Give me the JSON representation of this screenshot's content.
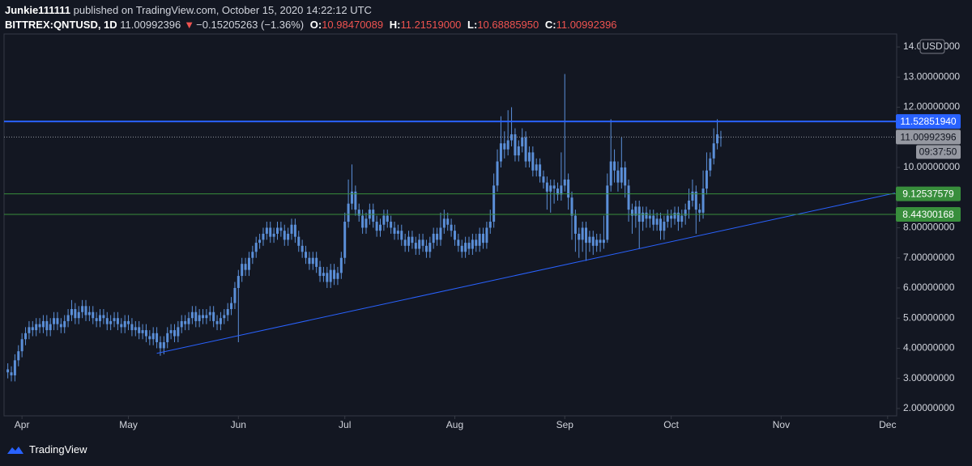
{
  "chart_data": {
    "type": "candlestick",
    "author": "Junkie111111",
    "published": "published on TradingView.com, October 15, 2020 14:22:12 UTC",
    "symbol": "BITTREX:QNTUSD, 1D",
    "last": "11.00992396",
    "change_arrow": "▼",
    "change": "−0.15205263 (−1.36%)",
    "ohlc_labels": [
      "O:",
      "H:",
      "L:",
      "C:"
    ],
    "ohlc_values": [
      "10.98470089",
      "11.21519000",
      "10.68885950",
      "11.00992396"
    ],
    "currency": "USD",
    "brand": "TradingView",
    "color": "#5b8fd8",
    "xlim": [
      85.8,
      338.1
    ],
    "ylim": [
      1.81,
      14.35
    ],
    "xticks": [
      {
        "value": 92,
        "label": "Apr"
      },
      {
        "value": 122,
        "label": "May"
      },
      {
        "value": 153,
        "label": "Jun"
      },
      {
        "value": 183,
        "label": "Jul"
      },
      {
        "value": 214,
        "label": "Aug"
      },
      {
        "value": 245,
        "label": "Sep"
      },
      {
        "value": 275,
        "label": "Oct"
      },
      {
        "value": 306,
        "label": "Nov"
      },
      {
        "value": 336,
        "label": "Dec"
      }
    ],
    "yticks": [
      {
        "value": 2,
        "label": "2.00000000"
      },
      {
        "value": 3,
        "label": "3.00000000"
      },
      {
        "value": 4,
        "label": "4.00000000"
      },
      {
        "value": 5,
        "label": "5.00000000"
      },
      {
        "value": 6,
        "label": "6.00000000"
      },
      {
        "value": 7,
        "label": "7.00000000"
      },
      {
        "value": 8,
        "label": "8.00000000"
      },
      {
        "value": 9,
        "label": "9.00000000"
      },
      {
        "value": 10,
        "label": "10.00000000"
      },
      {
        "value": 11,
        "label": "11.00000000"
      },
      {
        "value": 12,
        "label": "12.00000000"
      },
      {
        "value": 13,
        "label": "13.00000000"
      },
      {
        "value": 14,
        "label": "14.00000000"
      }
    ],
    "levels": [
      {
        "value": 11.5285194,
        "label": "11.52851940",
        "color": "#2962ff",
        "style": "solid"
      },
      {
        "value": 11.00992396,
        "label": "11.00992396",
        "sublabel": "09:37:50",
        "color": "#9598a1",
        "style": "dotted"
      },
      {
        "value": 9.12537579,
        "label": "9.12537579",
        "color": "#388e3c",
        "style": "solid"
      },
      {
        "value": 8.44300168,
        "label": "8.44300168",
        "color": "#388e3c",
        "style": "solid"
      }
    ],
    "trendline": {
      "x": [
        130,
        338.1
      ],
      "y": [
        3.83,
        9.15
      ],
      "color": "#2962ff"
    },
    "series": [
      {
        "x": [
          88,
          89,
          90,
          91,
          92,
          93,
          94,
          95,
          96,
          97,
          98,
          99,
          100,
          101,
          102,
          103,
          104,
          105,
          106,
          107,
          108,
          109,
          110,
          111,
          112,
          113,
          114,
          115,
          116,
          117,
          118,
          119,
          120,
          121,
          122,
          123,
          124,
          125,
          126,
          127,
          128,
          129,
          130,
          131,
          132,
          133,
          134,
          135,
          136,
          137,
          138,
          139,
          140,
          141,
          142,
          143,
          144,
          145,
          146,
          147,
          148,
          149,
          150,
          151,
          152,
          153,
          154,
          155,
          156,
          157,
          158,
          159,
          160,
          161,
          162,
          163,
          164,
          165,
          166,
          167,
          168,
          169,
          170,
          171,
          172,
          173,
          174,
          175,
          176,
          177,
          178,
          179,
          180,
          181,
          182,
          183,
          184,
          185,
          186,
          187,
          188,
          189,
          190,
          191,
          192,
          193,
          194,
          195,
          196,
          197,
          198,
          199,
          200,
          201,
          202,
          203,
          204,
          205,
          206,
          207,
          208,
          209,
          210,
          211,
          212,
          213,
          214,
          215,
          216,
          217,
          218,
          219,
          220,
          221,
          222,
          223,
          224,
          225,
          226,
          227,
          228,
          229,
          230,
          231,
          232,
          233,
          234,
          235,
          236,
          237,
          238,
          239,
          240,
          241,
          242,
          243,
          244,
          245,
          246,
          247,
          248,
          249,
          250,
          251,
          252,
          253,
          254,
          255,
          256,
          257,
          258,
          259,
          260,
          261,
          262,
          263,
          264,
          265,
          266,
          267,
          268,
          269,
          270,
          271,
          272,
          273,
          274,
          275,
          276,
          277,
          278,
          279,
          280,
          281,
          282,
          283,
          284,
          285,
          286,
          287,
          288,
          289
        ],
        "open": [
          3.3,
          3.2,
          3.1,
          3.6,
          3.9,
          4.3,
          4.5,
          4.7,
          4.6,
          4.8,
          4.7,
          4.9,
          4.6,
          4.8,
          5.0,
          4.8,
          4.7,
          4.9,
          5.1,
          5.3,
          5.0,
          5.2,
          5.4,
          5.1,
          5.2,
          5.0,
          4.9,
          5.1,
          5.0,
          4.8,
          4.9,
          5.0,
          4.8,
          4.7,
          4.9,
          4.8,
          4.6,
          4.7,
          4.5,
          4.6,
          4.4,
          4.3,
          4.5,
          4.2,
          4.0,
          4.2,
          4.5,
          4.6,
          4.4,
          4.7,
          4.9,
          4.8,
          5.0,
          5.2,
          4.9,
          5.1,
          5.0,
          5.1,
          5.2,
          4.9,
          4.8,
          5.0,
          5.1,
          5.3,
          5.5,
          6.0,
          6.4,
          6.8,
          6.6,
          7.0,
          7.2,
          7.5,
          7.6,
          7.8,
          8.0,
          7.7,
          7.8,
          8.0,
          7.9,
          7.6,
          7.8,
          8.1,
          7.7,
          7.4,
          7.2,
          7.0,
          6.8,
          7.0,
          6.7,
          6.4,
          6.5,
          6.2,
          6.6,
          6.3,
          6.5,
          7.0,
          8.2,
          8.8,
          9.2,
          8.6,
          8.4,
          8.0,
          8.3,
          8.6,
          8.2,
          7.9,
          8.1,
          8.4,
          8.2,
          8.0,
          7.8,
          7.9,
          7.6,
          7.4,
          7.7,
          7.5,
          7.3,
          7.6,
          7.4,
          7.2,
          7.5,
          7.8,
          7.6,
          8.0,
          8.3,
          8.1,
          7.9,
          7.6,
          7.4,
          7.2,
          7.5,
          7.3,
          7.6,
          7.4,
          7.8,
          7.5,
          8.0,
          8.2,
          9.4,
          10.2,
          10.8,
          10.6,
          10.9,
          11.1,
          10.4,
          10.7,
          11.0,
          10.2,
          10.5,
          9.9,
          10.1,
          9.7,
          9.5,
          9.2,
          9.4,
          9.3,
          9.1,
          9.4,
          9.6,
          9.0,
          8.4,
          7.8,
          7.6,
          8.0,
          7.5,
          7.7,
          7.4,
          7.6,
          7.5,
          7.6,
          9.4,
          10.2,
          9.9,
          9.5,
          10.0,
          9.4,
          8.6,
          8.4,
          8.7,
          8.2,
          8.5,
          8.3,
          8.4,
          8.1,
          8.3,
          7.9,
          8.2,
          8.4,
          8.3,
          8.5,
          8.2,
          8.4,
          8.6,
          8.9,
          9.2,
          8.6,
          8.5,
          9.3,
          9.9,
          10.3,
          10.8,
          10.98470089
        ],
        "high": [
          3.5,
          3.4,
          3.8,
          4.1,
          4.5,
          4.7,
          4.9,
          4.9,
          5.0,
          5.0,
          5.1,
          5.1,
          5.0,
          5.2,
          5.2,
          5.0,
          5.1,
          5.3,
          5.6,
          5.5,
          5.4,
          5.6,
          5.6,
          5.4,
          5.4,
          5.2,
          5.3,
          5.3,
          5.2,
          5.1,
          5.2,
          5.2,
          5.0,
          5.1,
          5.1,
          5.0,
          4.9,
          4.9,
          4.8,
          4.8,
          4.6,
          4.7,
          4.7,
          4.4,
          4.4,
          4.7,
          4.8,
          4.8,
          4.9,
          5.1,
          5.1,
          5.2,
          5.4,
          5.4,
          5.3,
          5.3,
          5.3,
          5.4,
          5.4,
          5.1,
          5.2,
          5.3,
          5.5,
          5.7,
          6.2,
          6.6,
          7.0,
          7.0,
          7.2,
          7.4,
          7.7,
          7.8,
          8.0,
          8.2,
          8.2,
          8.0,
          8.2,
          8.2,
          8.1,
          8.0,
          8.3,
          8.3,
          7.9,
          7.6,
          7.4,
          7.2,
          7.2,
          7.2,
          6.9,
          6.7,
          6.7,
          6.8,
          6.8,
          6.7,
          7.2,
          8.5,
          9.6,
          10.1,
          9.4,
          8.8,
          8.6,
          8.5,
          8.8,
          8.8,
          8.4,
          8.3,
          8.6,
          8.6,
          8.4,
          8.2,
          8.1,
          8.1,
          7.8,
          7.9,
          7.9,
          7.7,
          7.8,
          7.8,
          7.6,
          7.7,
          8.0,
          8.0,
          8.5,
          8.6,
          8.5,
          8.3,
          8.1,
          7.8,
          7.6,
          7.7,
          7.7,
          7.8,
          7.8,
          8.0,
          8.0,
          8.2,
          8.6,
          9.8,
          10.6,
          11.7,
          11.2,
          11.9,
          12.0,
          11.3,
          10.9,
          11.3,
          11.2,
          10.7,
          10.7,
          10.3,
          10.3,
          9.9,
          9.7,
          9.6,
          9.6,
          9.5,
          10.5,
          13.1,
          9.8,
          9.2,
          8.6,
          8.0,
          8.2,
          8.2,
          7.9,
          7.9,
          7.8,
          7.8,
          8.4,
          9.8,
          11.6,
          10.6,
          10.2,
          11.0,
          10.2,
          9.6,
          8.8,
          8.9,
          8.9,
          8.7,
          8.7,
          8.6,
          8.6,
          8.5,
          8.5,
          8.4,
          8.6,
          8.6,
          8.7,
          8.7,
          8.6,
          8.8,
          9.3,
          9.6,
          9.4,
          8.8,
          9.9,
          10.5,
          10.5,
          11.3,
          11.6,
          11.21519
        ],
        "low": [
          3.0,
          2.9,
          2.9,
          3.4,
          3.7,
          4.1,
          4.3,
          4.4,
          4.4,
          4.5,
          4.5,
          4.4,
          4.4,
          4.6,
          4.6,
          4.5,
          4.5,
          4.7,
          4.9,
          4.8,
          4.8,
          5.0,
          4.9,
          4.9,
          4.8,
          4.7,
          4.7,
          4.8,
          4.6,
          4.6,
          4.7,
          4.6,
          4.5,
          4.5,
          4.6,
          4.4,
          4.4,
          4.3,
          4.3,
          4.2,
          4.1,
          4.1,
          4.0,
          3.75,
          3.8,
          4.0,
          4.3,
          4.2,
          4.2,
          4.5,
          4.6,
          4.6,
          4.8,
          4.7,
          4.7,
          4.8,
          4.8,
          4.9,
          4.7,
          4.6,
          4.6,
          4.8,
          4.9,
          5.1,
          5.3,
          4.2,
          6.2,
          6.4,
          6.4,
          6.8,
          7.0,
          7.3,
          7.4,
          7.6,
          7.5,
          7.5,
          7.6,
          7.7,
          7.4,
          7.4,
          7.6,
          7.5,
          7.2,
          7.0,
          6.8,
          6.6,
          6.6,
          6.5,
          6.2,
          6.2,
          6.0,
          6.0,
          6.1,
          6.1,
          6.3,
          6.8,
          8.0,
          8.6,
          8.4,
          8.2,
          7.8,
          7.8,
          8.1,
          8.0,
          7.7,
          7.7,
          7.9,
          8.0,
          7.8,
          7.6,
          7.6,
          7.4,
          7.2,
          7.2,
          7.3,
          7.1,
          7.1,
          7.2,
          7.0,
          7.0,
          7.3,
          7.4,
          7.4,
          7.8,
          7.9,
          7.7,
          7.4,
          7.2,
          7.0,
          7.0,
          7.1,
          7.1,
          7.2,
          7.2,
          7.3,
          7.3,
          7.8,
          8.0,
          9.2,
          10.0,
          10.3,
          10.4,
          10.7,
          10.2,
          10.2,
          10.5,
          10.0,
          10.0,
          9.7,
          9.7,
          9.5,
          9.3,
          8.6,
          8.5,
          8.8,
          8.9,
          8.9,
          9.2,
          8.6,
          7.6,
          7.2,
          7.0,
          7.2,
          6.9,
          7.2,
          7.1,
          7.2,
          7.2,
          7.3,
          7.5,
          9.2,
          9.5,
          9.2,
          9.3,
          9.0,
          8.2,
          7.8,
          8.0,
          7.3,
          7.9,
          8.0,
          8.0,
          7.9,
          7.9,
          7.6,
          7.6,
          8.0,
          8.0,
          8.1,
          7.9,
          8.0,
          8.1,
          8.3,
          8.7,
          7.8,
          8.2,
          8.3,
          9.1,
          9.7,
          10.1,
          10.6,
          10.6888595
        ],
        "close": [
          3.2,
          3.1,
          3.6,
          3.9,
          4.3,
          4.5,
          4.7,
          4.6,
          4.8,
          4.7,
          4.9,
          4.6,
          4.8,
          5.0,
          4.8,
          4.7,
          4.9,
          5.1,
          5.3,
          5.0,
          5.2,
          5.4,
          5.1,
          5.2,
          5.0,
          4.9,
          5.1,
          5.0,
          4.8,
          4.9,
          5.0,
          4.8,
          4.7,
          4.9,
          4.8,
          4.6,
          4.7,
          4.5,
          4.6,
          4.4,
          4.3,
          4.5,
          4.2,
          4.0,
          4.2,
          4.5,
          4.6,
          4.4,
          4.7,
          4.9,
          4.8,
          5.0,
          5.2,
          4.9,
          5.1,
          5.0,
          5.1,
          5.2,
          4.9,
          4.8,
          5.0,
          5.1,
          5.3,
          5.5,
          6.0,
          6.4,
          6.8,
          6.6,
          7.0,
          7.2,
          7.5,
          7.6,
          7.8,
          8.0,
          7.7,
          7.8,
          8.0,
          7.9,
          7.6,
          7.8,
          8.1,
          7.7,
          7.4,
          7.2,
          7.0,
          6.8,
          7.0,
          6.7,
          6.4,
          6.5,
          6.2,
          6.6,
          6.3,
          6.5,
          7.0,
          8.2,
          8.8,
          9.2,
          8.6,
          8.4,
          8.0,
          8.3,
          8.6,
          8.2,
          7.9,
          8.1,
          8.4,
          8.2,
          8.0,
          7.8,
          7.9,
          7.6,
          7.4,
          7.7,
          7.5,
          7.3,
          7.6,
          7.4,
          7.2,
          7.5,
          7.8,
          7.6,
          8.0,
          8.3,
          8.1,
          7.9,
          7.6,
          7.4,
          7.2,
          7.5,
          7.3,
          7.6,
          7.4,
          7.8,
          7.5,
          8.0,
          8.2,
          9.4,
          10.2,
          10.8,
          10.6,
          10.9,
          11.1,
          10.4,
          10.7,
          11.0,
          10.2,
          10.5,
          9.9,
          10.1,
          9.7,
          9.5,
          9.2,
          9.4,
          9.3,
          9.1,
          9.4,
          9.6,
          9.0,
          8.4,
          7.8,
          7.6,
          8.0,
          7.5,
          7.7,
          7.4,
          7.6,
          7.5,
          7.6,
          9.4,
          10.2,
          9.9,
          9.5,
          10.0,
          9.4,
          8.6,
          8.4,
          8.7,
          8.2,
          8.5,
          8.3,
          8.4,
          8.1,
          8.3,
          7.9,
          8.2,
          8.4,
          8.3,
          8.5,
          8.2,
          8.4,
          8.6,
          8.9,
          9.2,
          8.6,
          8.5,
          9.3,
          9.9,
          10.3,
          10.8,
          11.1,
          11.00992396
        ]
      }
    ]
  }
}
